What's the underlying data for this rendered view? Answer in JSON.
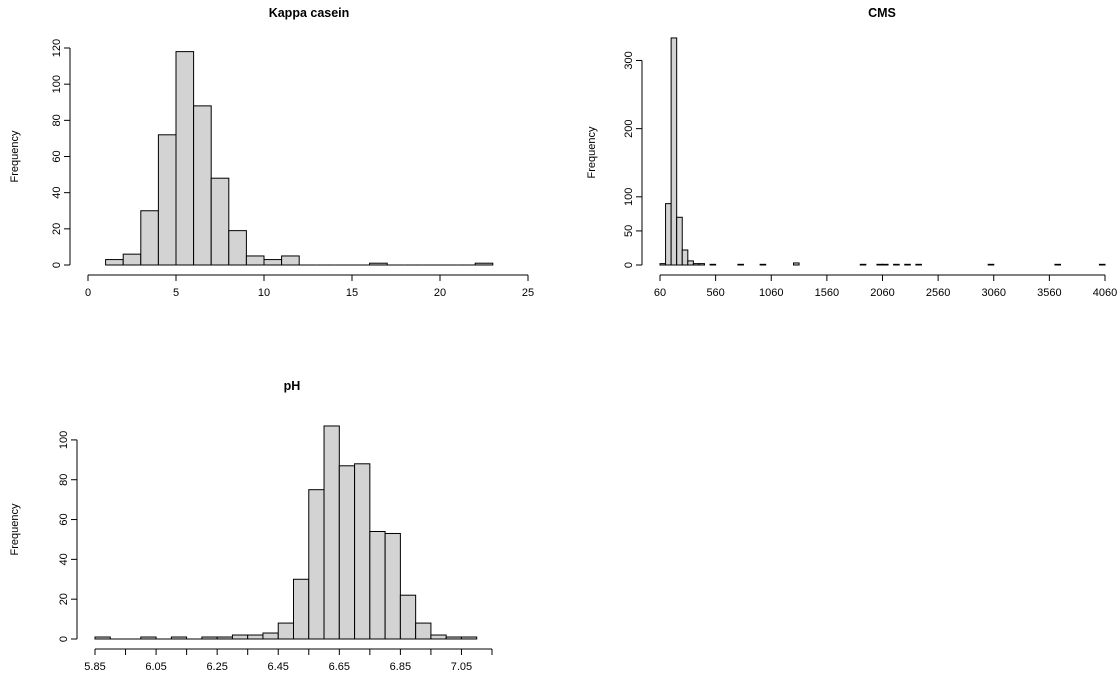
{
  "style": {
    "bar_fill": "#d3d3d3",
    "bar_stroke": "#000000",
    "background": "#ffffff"
  },
  "chart_data": [
    {
      "type": "bar",
      "title": "Kappa casein",
      "xlabel": "",
      "ylabel": "Frequency",
      "grid": false,
      "xlim": [
        0,
        25
      ],
      "ylim": [
        0,
        120
      ],
      "x_ticks": [
        0,
        5,
        10,
        15,
        20,
        25
      ],
      "x_tick_labels": [
        "0",
        "5",
        "10",
        "15",
        "20",
        "25"
      ],
      "y_ticks": [
        0,
        20,
        40,
        60,
        80,
        100,
        120
      ],
      "y_tick_labels": [
        "0",
        "20",
        "40",
        "60",
        "80",
        "100",
        "120"
      ],
      "bins": [
        {
          "x0": 1,
          "x1": 2,
          "count": 3
        },
        {
          "x0": 2,
          "x1": 3,
          "count": 6
        },
        {
          "x0": 3,
          "x1": 4,
          "count": 30
        },
        {
          "x0": 4,
          "x1": 5,
          "count": 72
        },
        {
          "x0": 5,
          "x1": 6,
          "count": 118
        },
        {
          "x0": 6,
          "x1": 7,
          "count": 88
        },
        {
          "x0": 7,
          "x1": 8,
          "count": 48
        },
        {
          "x0": 8,
          "x1": 9,
          "count": 19
        },
        {
          "x0": 9,
          "x1": 10,
          "count": 5
        },
        {
          "x0": 10,
          "x1": 11,
          "count": 3
        },
        {
          "x0": 11,
          "x1": 12,
          "count": 5
        },
        {
          "x0": 12,
          "x1": 13,
          "count": 0
        },
        {
          "x0": 13,
          "x1": 14,
          "count": 0
        },
        {
          "x0": 14,
          "x1": 15,
          "count": 0
        },
        {
          "x0": 15,
          "x1": 16,
          "count": 0
        },
        {
          "x0": 16,
          "x1": 17,
          "count": 1
        },
        {
          "x0": 17,
          "x1": 18,
          "count": 0
        },
        {
          "x0": 18,
          "x1": 19,
          "count": 0
        },
        {
          "x0": 19,
          "x1": 20,
          "count": 0
        },
        {
          "x0": 20,
          "x1": 21,
          "count": 0
        },
        {
          "x0": 21,
          "x1": 22,
          "count": 0
        },
        {
          "x0": 22,
          "x1": 23,
          "count": 1
        }
      ]
    },
    {
      "type": "bar",
      "title": "CMS",
      "xlabel": "",
      "ylabel": "Frequency",
      "grid": false,
      "xlim": [
        60,
        4060
      ],
      "ylim": [
        0,
        330
      ],
      "x_ticks": [
        60,
        560,
        1060,
        1560,
        2060,
        2560,
        3060,
        3560,
        4060
      ],
      "x_tick_labels": [
        "60",
        "560",
        "1060",
        "1560",
        "2060",
        "2560",
        "3060",
        "3560",
        "4060"
      ],
      "y_ticks": [
        0,
        50,
        100,
        200,
        300
      ],
      "y_tick_labels": [
        "0",
        "50",
        "100",
        "200",
        "300"
      ],
      "bins": [
        {
          "x0": 60,
          "x1": 110,
          "count": 2
        },
        {
          "x0": 110,
          "x1": 160,
          "count": 90
        },
        {
          "x0": 160,
          "x1": 210,
          "count": 333
        },
        {
          "x0": 210,
          "x1": 260,
          "count": 70
        },
        {
          "x0": 260,
          "x1": 310,
          "count": 22
        },
        {
          "x0": 310,
          "x1": 360,
          "count": 6
        },
        {
          "x0": 360,
          "x1": 410,
          "count": 2
        },
        {
          "x0": 410,
          "x1": 460,
          "count": 2
        },
        {
          "x0": 510,
          "x1": 560,
          "count": 1
        },
        {
          "x0": 760,
          "x1": 810,
          "count": 1
        },
        {
          "x0": 960,
          "x1": 1010,
          "count": 1
        },
        {
          "x0": 1260,
          "x1": 1310,
          "count": 3
        },
        {
          "x0": 1860,
          "x1": 1910,
          "count": 1
        },
        {
          "x0": 2010,
          "x1": 2060,
          "count": 1
        },
        {
          "x0": 2060,
          "x1": 2110,
          "count": 1
        },
        {
          "x0": 2160,
          "x1": 2210,
          "count": 1
        },
        {
          "x0": 2260,
          "x1": 2310,
          "count": 1
        },
        {
          "x0": 2360,
          "x1": 2410,
          "count": 1
        },
        {
          "x0": 3010,
          "x1": 3060,
          "count": 1
        },
        {
          "x0": 3610,
          "x1": 3660,
          "count": 1
        },
        {
          "x0": 4010,
          "x1": 4060,
          "count": 1
        }
      ]
    },
    {
      "type": "bar",
      "title": "pH",
      "xlabel": "",
      "ylabel": "Frequency",
      "grid": false,
      "xlim": [
        5.85,
        7.15
      ],
      "ylim": [
        0,
        110
      ],
      "x_ticks": [
        5.85,
        5.95,
        6.05,
        6.15,
        6.25,
        6.35,
        6.45,
        6.55,
        6.65,
        6.75,
        6.85,
        6.95,
        7.05,
        7.15
      ],
      "x_tick_labels": [
        "5.85",
        "",
        "6.05",
        "",
        "6.25",
        "",
        "6.45",
        "",
        "6.65",
        "",
        "6.85",
        "",
        "7.05",
        ""
      ],
      "y_ticks": [
        0,
        20,
        40,
        60,
        80,
        100
      ],
      "y_tick_labels": [
        "0",
        "20",
        "40",
        "60",
        "80",
        "100"
      ],
      "bins": [
        {
          "x0": 5.85,
          "x1": 5.9,
          "count": 1
        },
        {
          "x0": 5.9,
          "x1": 5.95,
          "count": 0
        },
        {
          "x0": 5.95,
          "x1": 6.0,
          "count": 0
        },
        {
          "x0": 6.0,
          "x1": 6.05,
          "count": 1
        },
        {
          "x0": 6.05,
          "x1": 6.1,
          "count": 0
        },
        {
          "x0": 6.1,
          "x1": 6.15,
          "count": 1
        },
        {
          "x0": 6.15,
          "x1": 6.2,
          "count": 0
        },
        {
          "x0": 6.2,
          "x1": 6.25,
          "count": 1
        },
        {
          "x0": 6.25,
          "x1": 6.3,
          "count": 1
        },
        {
          "x0": 6.3,
          "x1": 6.35,
          "count": 2
        },
        {
          "x0": 6.35,
          "x1": 6.4,
          "count": 2
        },
        {
          "x0": 6.4,
          "x1": 6.45,
          "count": 3
        },
        {
          "x0": 6.45,
          "x1": 6.5,
          "count": 8
        },
        {
          "x0": 6.5,
          "x1": 6.55,
          "count": 30
        },
        {
          "x0": 6.55,
          "x1": 6.6,
          "count": 75
        },
        {
          "x0": 6.6,
          "x1": 6.65,
          "count": 107
        },
        {
          "x0": 6.65,
          "x1": 6.7,
          "count": 87
        },
        {
          "x0": 6.7,
          "x1": 6.75,
          "count": 88
        },
        {
          "x0": 6.75,
          "x1": 6.8,
          "count": 54
        },
        {
          "x0": 6.8,
          "x1": 6.85,
          "count": 53
        },
        {
          "x0": 6.85,
          "x1": 6.9,
          "count": 22
        },
        {
          "x0": 6.9,
          "x1": 6.95,
          "count": 8
        },
        {
          "x0": 6.95,
          "x1": 7.0,
          "count": 2
        },
        {
          "x0": 7.0,
          "x1": 7.05,
          "count": 1
        },
        {
          "x0": 7.05,
          "x1": 7.1,
          "count": 1
        }
      ]
    }
  ]
}
